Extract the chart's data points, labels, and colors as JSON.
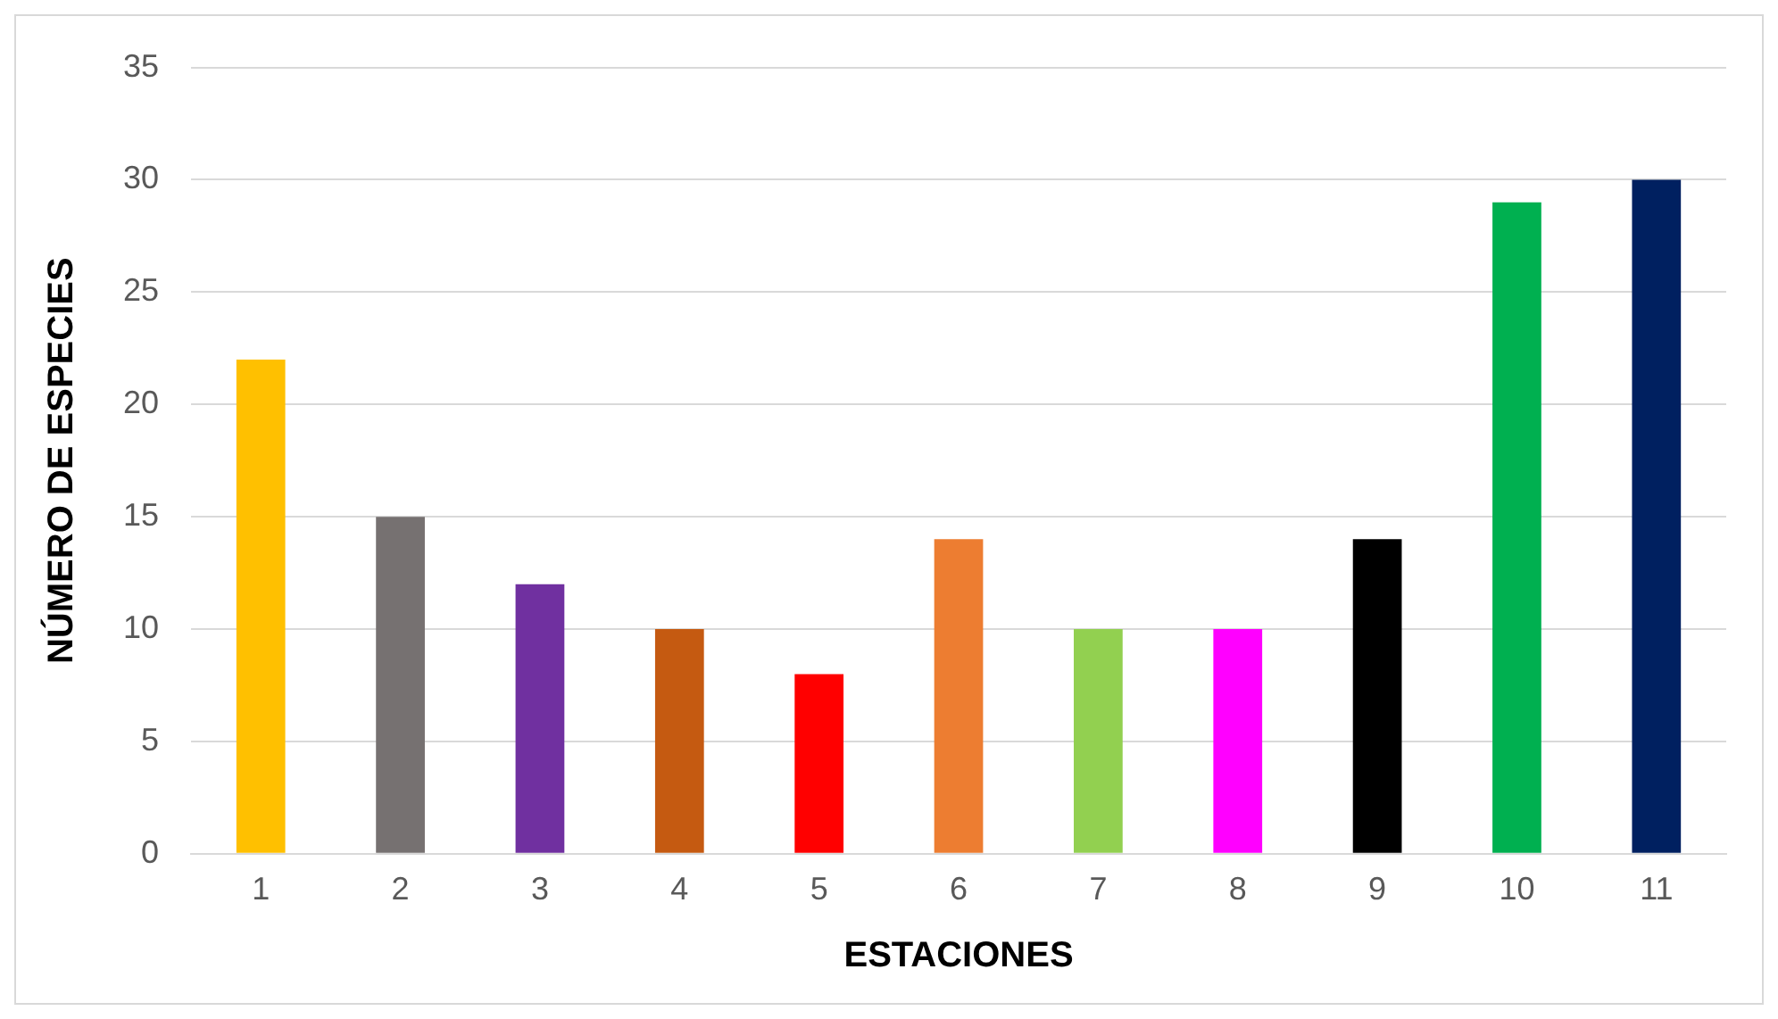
{
  "chart_data": {
    "type": "bar",
    "xlabel": "ESTACIONES",
    "ylabel": "NÚMERO DE ESPECIES",
    "categories": [
      "1",
      "2",
      "3",
      "4",
      "5",
      "6",
      "7",
      "8",
      "9",
      "10",
      "11"
    ],
    "values": [
      22,
      15,
      12,
      10,
      8,
      14,
      10,
      10,
      14,
      29,
      30
    ],
    "colors": [
      "#ffc000",
      "#767171",
      "#7030a0",
      "#c55a11",
      "#ff0000",
      "#ed7d31",
      "#92d050",
      "#ff00ff",
      "#000000",
      "#00b050",
      "#002060"
    ],
    "ylim": [
      0,
      35
    ],
    "yticks": [
      0,
      5,
      10,
      15,
      20,
      25,
      30,
      35
    ],
    "grid": "y",
    "legend": false
  }
}
